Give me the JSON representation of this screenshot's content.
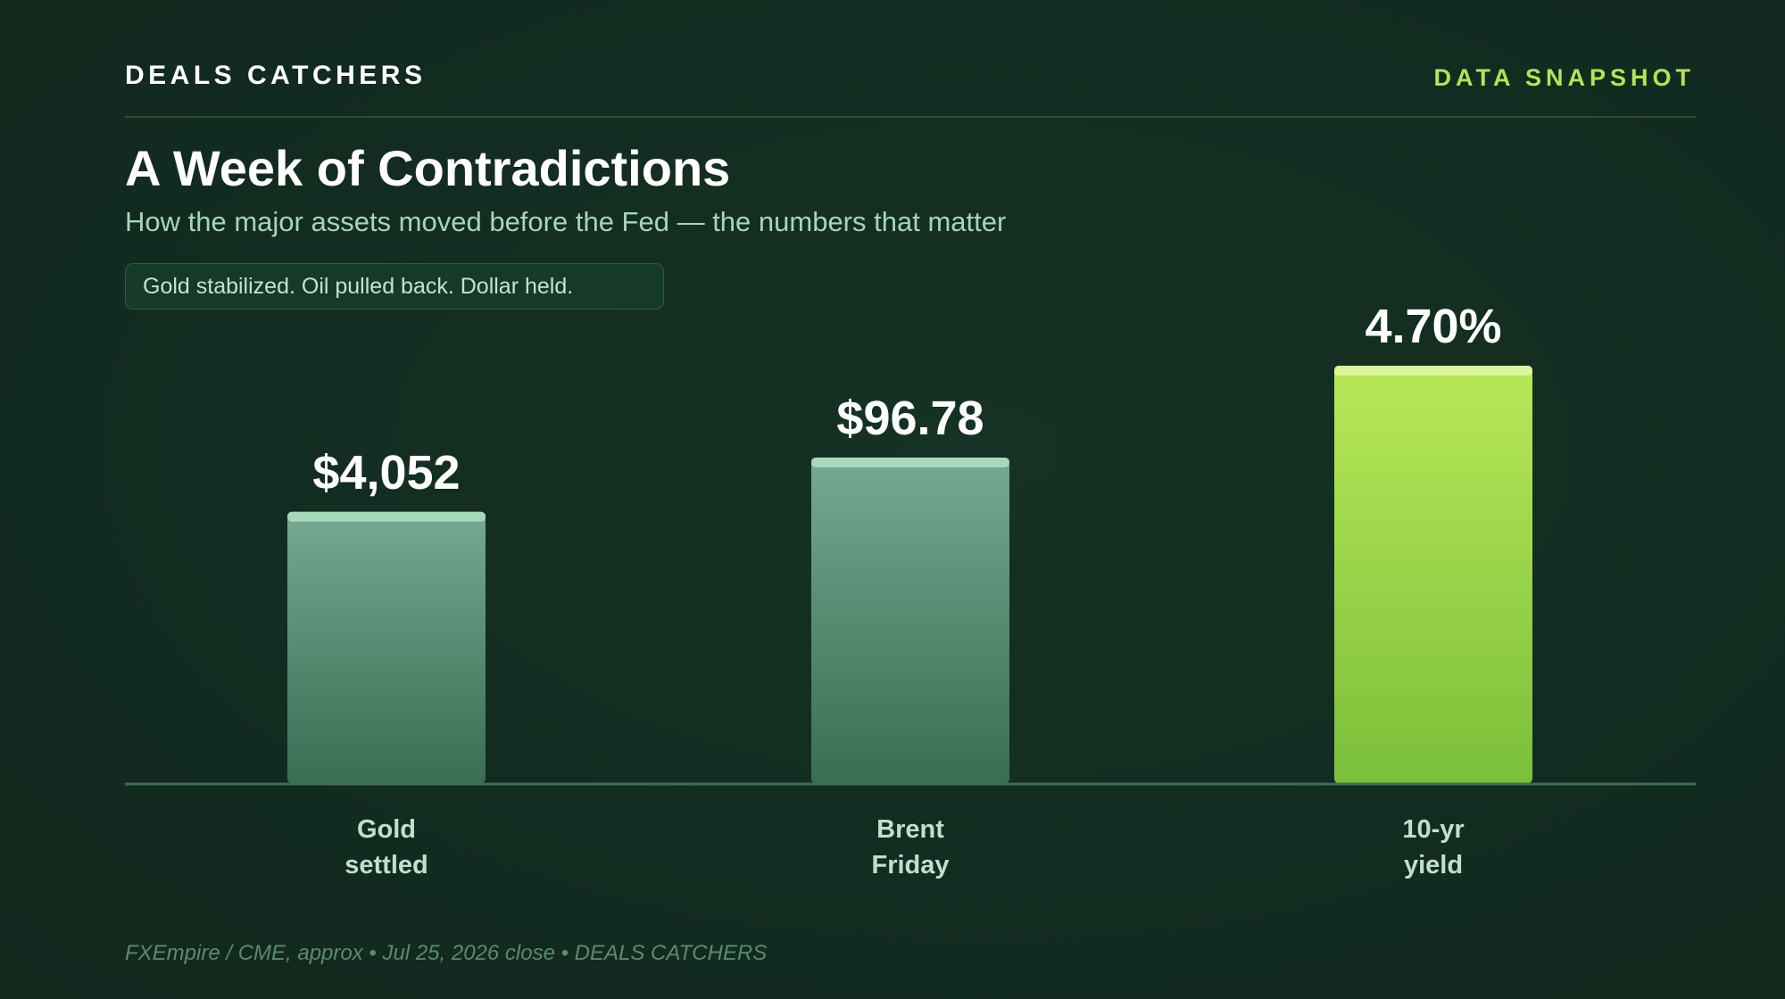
{
  "header": {
    "brand": "DEALS CATCHERS",
    "tag": "DATA SNAPSHOT"
  },
  "title": "A Week of Contradictions",
  "subtitle": "How the major assets moved before the Fed — the numbers that matter",
  "badge": "Gold stabilized. Oil pulled back. Dollar held.",
  "footer": "FXEmpire / CME, approx • Jul 25, 2026 close • DEALS CATCHERS",
  "colors": {
    "accent": "#b4e25a",
    "muted_bar_top": "#76a893",
    "muted_bar_bottom": "#3a6d52",
    "highlight_bar_top": "#b8e858",
    "highlight_bar_bottom": "#7bbf3a"
  },
  "chart_data": {
    "type": "bar",
    "categories": [
      [
        "Gold",
        "settled"
      ],
      [
        "Brent",
        "Friday"
      ],
      [
        "10-yr",
        "yield"
      ]
    ],
    "values": [
      4052,
      96.78,
      4.7
    ],
    "labels": [
      "$4,052",
      "$96.78",
      "4.70%"
    ],
    "bar_fill": [
      0.65,
      0.78,
      1.0
    ],
    "highlight": [
      false,
      false,
      true
    ],
    "title": "",
    "xlabel": "",
    "ylabel": "",
    "grid": false,
    "legend": "none"
  }
}
